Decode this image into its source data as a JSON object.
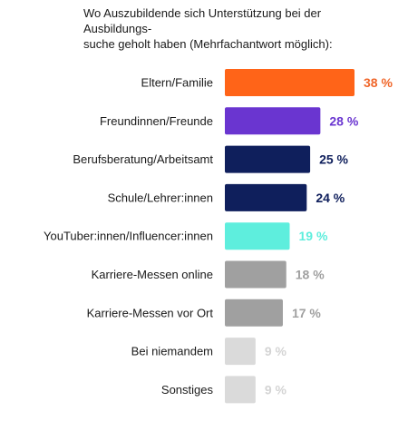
{
  "chart_data": {
    "type": "bar",
    "orientation": "horizontal",
    "title": "Wo Auszubildende sich Unterstützung bei der Ausbildungs-suche geholt haben (Mehrfachantwort möglich):",
    "title_lines": [
      "Wo Auszubildende sich Unterstützung bei der Ausbildungs-",
      "suche geholt haben (Mehrfachantwort möglich):"
    ],
    "categories": [
      "Eltern/Familie",
      "Freundinnen/Freunde",
      "Berufsberatung/Arbeitsamt",
      "Schule/Lehrer:innen",
      "YouTuber:innen/Influencer:innen",
      "Karriere-Messen online",
      "Karriere-Messen vor Ort",
      "Bei niemandem",
      "Sonstiges"
    ],
    "values": [
      38,
      28,
      25,
      24,
      19,
      18,
      17,
      9,
      9
    ],
    "value_labels": [
      "38 %",
      "28 %",
      "25 %",
      "24 %",
      "19 %",
      "18 %",
      "17 %",
      "9 %",
      "9 %"
    ],
    "bar_colors": [
      "#ff6418",
      "#6a35d0",
      "#0f1f5c",
      "#0f1f5c",
      "#5eeedd",
      "#a0a0a0",
      "#a0a0a0",
      "#dadada",
      "#dadada"
    ],
    "label_colors": [
      "#f0662a",
      "#6a35d0",
      "#0f1f5c",
      "#0f1f5c",
      "#5eeedd",
      "#a0a0a0",
      "#a0a0a0",
      "#d4d4d4",
      "#d4d4d4"
    ],
    "xlim": [
      0,
      38
    ],
    "grid": false,
    "legend": "none"
  }
}
